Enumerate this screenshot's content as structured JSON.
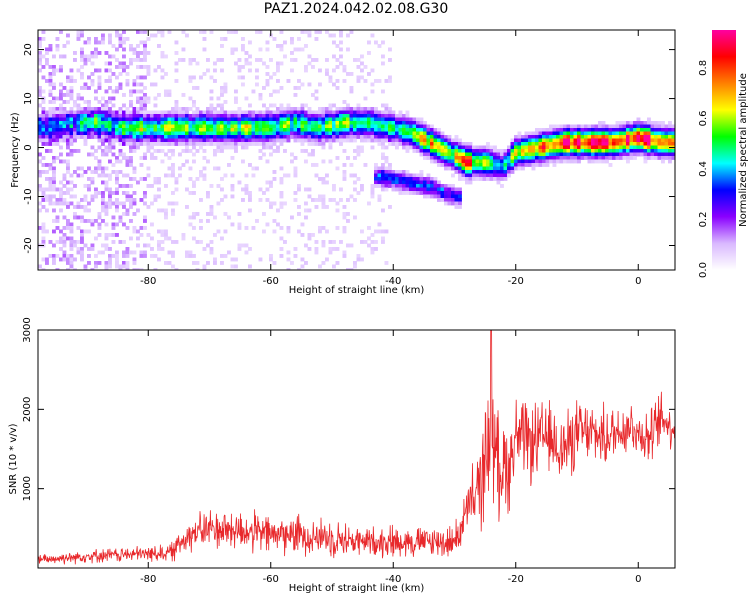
{
  "figure_title": "PAZ1.2024.042.02.08.G30",
  "chart_data": [
    {
      "type": "heatmap",
      "title": "",
      "xlabel": "Height of straight line (km)",
      "ylabel": "Frequency (Hz)",
      "xlim": [
        -98,
        6
      ],
      "ylim": [
        -25,
        24
      ],
      "xticks": [
        -80,
        -60,
        -40,
        -20,
        0
      ],
      "yticks": [
        -20,
        -10,
        0,
        10,
        20
      ],
      "colorbar": {
        "label": "Normalized spectral amplitude",
        "range": [
          0.0,
          0.95
        ],
        "ticks": [
          0.0,
          0.2,
          0.4,
          0.6,
          0.8
        ],
        "colormap": [
          "#ffffff",
          "#d9b8ff",
          "#8a00ff",
          "#0000ff",
          "#00ffff",
          "#00ff00",
          "#ffff00",
          "#ff8000",
          "#ff0000",
          "#ff00a0"
        ]
      },
      "ridge_x": [
        -96,
        -92,
        -88,
        -84,
        -80,
        -76,
        -72,
        -68,
        -64,
        -60,
        -56,
        -52,
        -48,
        -44,
        -40,
        -37,
        -34,
        -31,
        -28,
        -25,
        -22,
        -20,
        -16,
        -12,
        -8,
        -4,
        0,
        4,
        6
      ],
      "ridge_freq": [
        4,
        5,
        5,
        4,
        4,
        4,
        4,
        4,
        4,
        4,
        5,
        4,
        5,
        5,
        4,
        3,
        1,
        -1,
        -3,
        -3,
        -4,
        -1,
        0,
        1,
        1,
        1,
        2,
        1,
        1
      ],
      "ridge_amp": [
        0.3,
        0.35,
        0.45,
        0.5,
        0.45,
        0.55,
        0.5,
        0.6,
        0.55,
        0.45,
        0.5,
        0.45,
        0.5,
        0.55,
        0.5,
        0.55,
        0.75,
        0.6,
        0.8,
        0.55,
        0.45,
        0.6,
        0.7,
        0.85,
        0.85,
        0.85,
        0.9,
        0.85,
        0.9
      ],
      "secondary_x": [
        -42,
        -38,
        -34,
        -30
      ],
      "secondary_freq": [
        -6,
        -7,
        -8,
        -10
      ],
      "secondary_amp": [
        0.3,
        0.35,
        0.35,
        0.3
      ]
    },
    {
      "type": "line",
      "title": "",
      "xlabel": "Height of straight line (km)",
      "ylabel": "SNR (10 * v/v)",
      "xlim": [
        -98,
        6
      ],
      "ylim": [
        0,
        3000
      ],
      "xticks": [
        -80,
        -60,
        -40,
        -20,
        0
      ],
      "yticks": [
        1000,
        2000,
        3000
      ],
      "color": "#e8282b",
      "envelope_x": [
        -98,
        -90,
        -80,
        -76,
        -74,
        -70,
        -66,
        -60,
        -55,
        -50,
        -45,
        -40,
        -35,
        -30,
        -28,
        -26,
        -24,
        -23,
        -21,
        -20,
        -18,
        -15,
        -12,
        -10,
        -8,
        -5,
        -3,
        -1,
        0,
        2,
        4,
        5,
        6
      ],
      "envelope_mean": [
        100,
        150,
        180,
        200,
        400,
        500,
        480,
        420,
        420,
        380,
        330,
        340,
        330,
        330,
        700,
        1000,
        1700,
        1300,
        1300,
        1700,
        1550,
        1650,
        1500,
        1700,
        1700,
        1650,
        1750,
        1800,
        1700,
        1650,
        1900,
        1800,
        1750
      ],
      "envelope_amp": [
        80,
        100,
        120,
        150,
        250,
        300,
        320,
        300,
        300,
        280,
        220,
        250,
        230,
        250,
        400,
        700,
        900,
        800,
        700,
        600,
        600,
        550,
        550,
        500,
        450,
        450,
        450,
        400,
        400,
        400,
        450,
        350,
        250
      ],
      "peak": {
        "x": -24,
        "y": 3000
      }
    }
  ]
}
